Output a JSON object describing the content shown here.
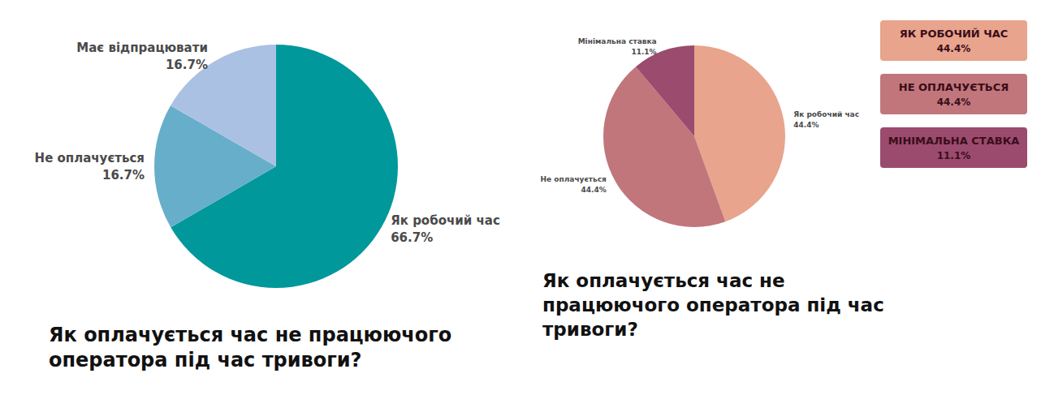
{
  "chart_data": [
    {
      "type": "pie",
      "title": "Як оплачується час не працюючого оператора під час тривоги?",
      "categories": [
        "Як робочий час",
        "Не оплачується",
        "Має відпрацювати"
      ],
      "values": [
        66.7,
        16.7,
        16.7
      ],
      "value_labels": [
        "66.7%",
        "16.7%",
        "16.7%"
      ],
      "colors": [
        "#00989b",
        "#67aecb",
        "#abc1e3"
      ],
      "data_labels": true
    },
    {
      "type": "pie",
      "title": "Як оплачується час не працюючого оператора під час тривоги?",
      "categories": [
        "Як робочий час",
        "Не оплачується",
        "Мінімальна ставка"
      ],
      "values": [
        44.4,
        44.4,
        11.1
      ],
      "value_labels": [
        "44.4%",
        "44.4%",
        "11.1%"
      ],
      "colors": [
        "#e8a48c",
        "#c0767b",
        "#9a4b6e"
      ],
      "data_labels": true,
      "legend": "right"
    }
  ]
}
